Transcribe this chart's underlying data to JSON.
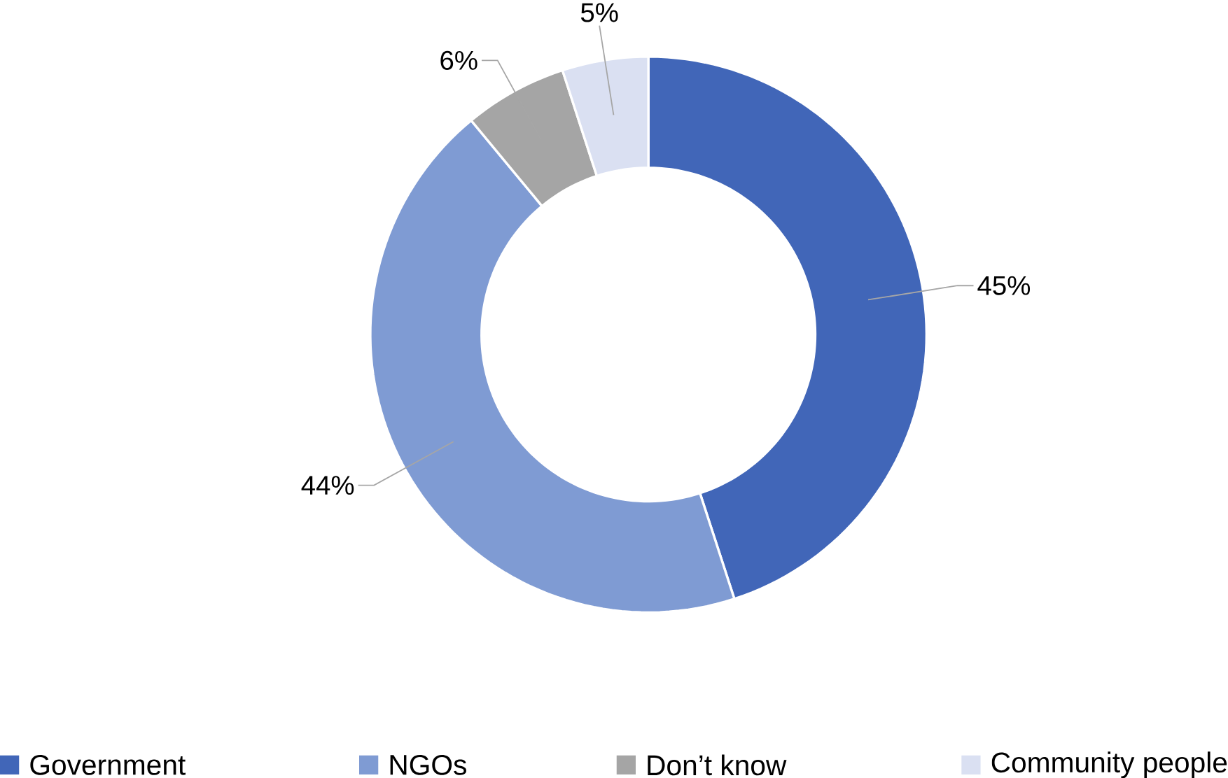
{
  "chart_data": {
    "type": "donut",
    "categories": [
      "Government",
      "NGOs",
      "Don’t know",
      "Community people"
    ],
    "values": [
      45,
      44,
      6,
      5
    ],
    "colors": [
      "#4166b8",
      "#7f9bd3",
      "#a5a5a5",
      "#dae0f2"
    ],
    "value_labels": [
      "45%",
      "44%",
      "6%",
      "5%"
    ],
    "legend": "bottom"
  }
}
